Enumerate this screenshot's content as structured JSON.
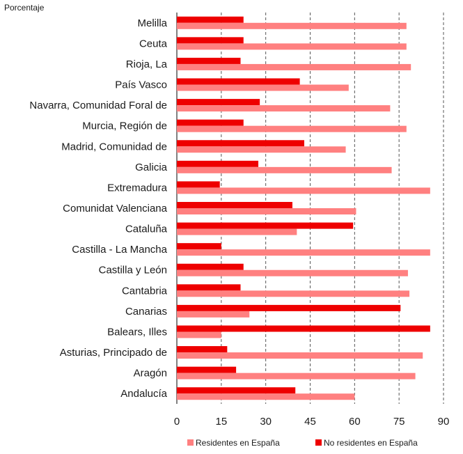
{
  "chart_data": {
    "type": "bar",
    "orientation": "horizontal",
    "unit_label": "Porcentaje",
    "categories": [
      "Melilla",
      "Ceuta",
      "Rioja, La",
      "País Vasco",
      "Navarra, Comunidad Foral de",
      "Murcia, Región de",
      "Madrid, Comunidad de",
      "Galicia",
      "Extremadura",
      "Comunidat Valenciana",
      "Cataluña",
      "Castilla - La Mancha",
      "Castilla y León",
      "Cantabria",
      "Canarias",
      "Balears, Illes",
      "Asturias, Principado de",
      "Aragón",
      "Andalucía"
    ],
    "series": [
      {
        "name": "Residentes en España",
        "color": "#ff8080",
        "values": [
          77.5,
          77.5,
          79,
          58,
          72,
          77.5,
          57,
          72.5,
          85.5,
          60.5,
          40.5,
          85.5,
          78,
          78.5,
          24.5,
          15,
          83,
          80.5,
          60
        ]
      },
      {
        "name": "No residentes en España",
        "color": "#ee0000",
        "values": [
          22.5,
          22.5,
          21.5,
          41.5,
          28,
          22.5,
          43,
          27.5,
          14.5,
          39,
          59.5,
          15,
          22.5,
          21.5,
          75.5,
          85.5,
          17,
          20,
          40
        ]
      }
    ],
    "xlim": [
      0,
      90
    ],
    "xticks": [
      "0",
      "15",
      "30",
      "45",
      "60",
      "75",
      "90"
    ],
    "grid": "vertical dashed",
    "legend_position": "bottom"
  }
}
